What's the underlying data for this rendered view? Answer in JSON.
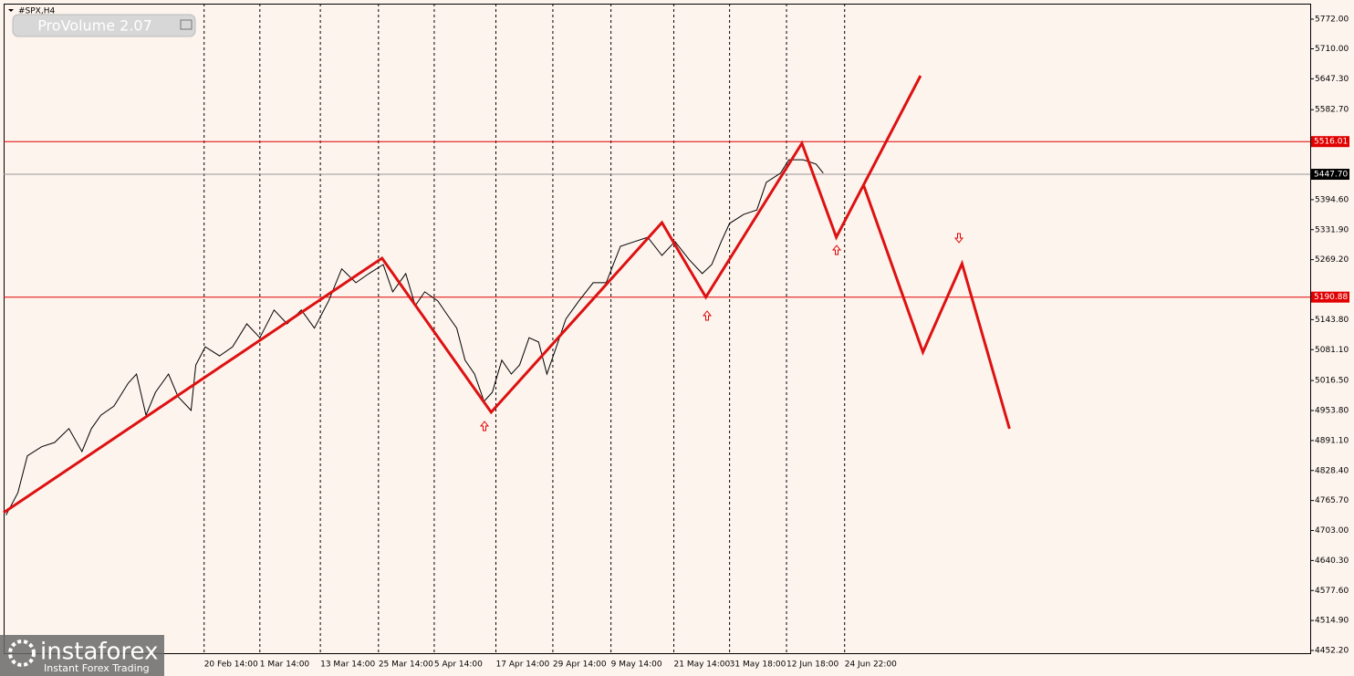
{
  "chart_data": {
    "type": "line",
    "symbol": "#SPX,H4",
    "indicator": "ProVolume 2.07",
    "watermark": {
      "brand": "instaforex",
      "tagline": "Instant Forex Trading"
    },
    "xlim": [
      0,
      1101.5
    ],
    "ylim": [
      4446.5,
      5804.4
    ],
    "xticks": [
      {
        "value": 169,
        "label": "20 Feb 14:00"
      },
      {
        "value": 216,
        "label": "1 Mar 14:00"
      },
      {
        "value": 267,
        "label": "13 Mar 14:00"
      },
      {
        "value": 316,
        "label": "25 Mar 14:00"
      },
      {
        "value": 363,
        "label": "5 Apr 14:00"
      },
      {
        "value": 415,
        "label": "17 Apr 14:00"
      },
      {
        "value": 463,
        "label": "29 Apr 14:00"
      },
      {
        "value": 512,
        "label": "9 May 14:00"
      },
      {
        "value": 565,
        "label": "21 May 14:00"
      },
      {
        "value": 612,
        "label": "31 May 18:00"
      },
      {
        "value": 660,
        "label": "12 Jun 18:00"
      },
      {
        "value": 709,
        "label": "24 Jun 22:00"
      }
    ],
    "yticks": [
      {
        "value": 5772,
        "label": "5772.00"
      },
      {
        "value": 5710,
        "label": "5710.00"
      },
      {
        "value": 5647.3,
        "label": "5647.30"
      },
      {
        "value": 5582.7,
        "label": "5582.70"
      },
      {
        "value": 5394.6,
        "label": "5394.60"
      },
      {
        "value": 5331.9,
        "label": "5331.90"
      },
      {
        "value": 5269.2,
        "label": "5269.20"
      },
      {
        "value": 5143.8,
        "label": "5143.80"
      },
      {
        "value": 5081.1,
        "label": "5081.10"
      },
      {
        "value": 5016.5,
        "label": "5016.50"
      },
      {
        "value": 4953.8,
        "label": "4953.80"
      },
      {
        "value": 4891.1,
        "label": "4891.10"
      },
      {
        "value": 4828.4,
        "label": "4828.40"
      },
      {
        "value": 4765.7,
        "label": "4765.70"
      },
      {
        "value": 4703,
        "label": "4703.00"
      },
      {
        "value": 4640.3,
        "label": "4640.30"
      },
      {
        "value": 4577.6,
        "label": "4577.60"
      },
      {
        "value": 4514.9,
        "label": "4514.90"
      },
      {
        "value": 4452.2,
        "label": "4452.20"
      }
    ],
    "hlines": [
      {
        "value": 5516.01,
        "label": "5516.01",
        "color": "#e00000"
      },
      {
        "value": 5190.88,
        "label": "5190.88",
        "color": "#e00000"
      },
      {
        "value": 5447.7,
        "label": "5447.70",
        "color": "#000000"
      }
    ],
    "series": [
      {
        "color": "#000000",
        "width": 1,
        "x": [
          2,
          12,
          20,
          32,
          43,
          55,
          66,
          74,
          82,
          93,
          105,
          112,
          120,
          128,
          139,
          147,
          158,
          162,
          170,
          182,
          193,
          205,
          216,
          228,
          239,
          251,
          262,
          274,
          285,
          297,
          308,
          320,
          328,
          339,
          347,
          355,
          366,
          374,
          382,
          389,
          397,
          405,
          412,
          420,
          428,
          435,
          443,
          451,
          458,
          466,
          474,
          485,
          497,
          508,
          520,
          532,
          543,
          555,
          566,
          578,
          589,
          597,
          605,
          612,
          624,
          635,
          643,
          655,
          662,
          674,
          685,
          691
        ],
        "values": [
          4735,
          4782,
          4859,
          4878,
          4887,
          4916,
          4868,
          4916,
          4944,
          4963,
          5011,
          5030,
          4944,
          4992,
          5030,
          4983,
          4954,
          5049,
          5087,
          5068,
          5087,
          5135,
          5106,
          5164,
          5135,
          5164,
          5126,
          5183,
          5250,
          5221,
          5240,
          5259,
          5202,
          5240,
          5173,
          5202,
          5183,
          5154,
          5126,
          5059,
          5030,
          4973,
          4992,
          5059,
          5030,
          5049,
          5106,
          5097,
          5030,
          5087,
          5145,
          5183,
          5221,
          5221,
          5297,
          5307,
          5316,
          5278,
          5307,
          5269,
          5240,
          5259,
          5307,
          5345,
          5364,
          5373,
          5431,
          5450,
          5478,
          5478,
          5469,
          5450
        ]
      },
      {
        "color": "#dd1111",
        "width": 3,
        "x": [
          0,
          319,
          411,
          555,
          592,
          673,
          702,
          773
        ],
        "values": [
          4740.3,
          5272.3,
          4950.1,
          5346.7,
          5190.9,
          5512.6,
          5316.2,
          5653.7
        ]
      },
      {
        "color": "#dd1111",
        "width": 3,
        "x": [
          725,
          775,
          808,
          848
        ],
        "values": [
          5424.9,
          5075.9,
          5260.9,
          4915.7
        ]
      }
    ]
  }
}
